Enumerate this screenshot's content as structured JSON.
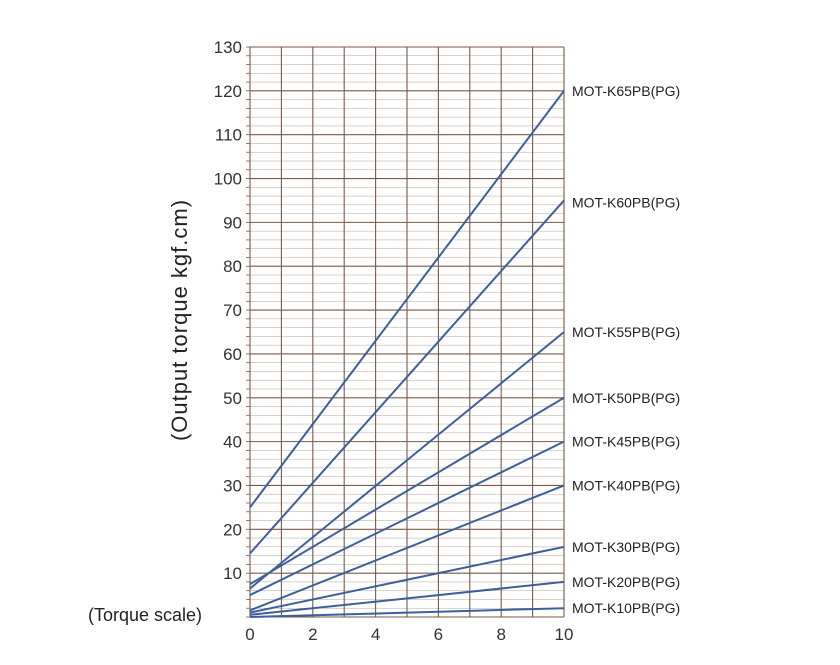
{
  "chart_data": {
    "type": "line",
    "title": "",
    "xlabel": "(Torque scale)",
    "ylabel": "(Output torque kgf.cm)",
    "xlim": [
      0,
      10
    ],
    "ylim": [
      0,
      130
    ],
    "xticks": [
      0,
      2,
      4,
      6,
      8,
      10
    ],
    "yticks": [
      10,
      20,
      30,
      40,
      50,
      60,
      70,
      80,
      90,
      100,
      110,
      120,
      130
    ],
    "grid": true,
    "legend": "none",
    "series": [
      {
        "name": "MOT-K65PB(PG)",
        "x": [
          0,
          10
        ],
        "y": [
          25,
          120
        ]
      },
      {
        "name": "MOT-K60PB(PG)",
        "x": [
          0,
          10
        ],
        "y": [
          14.5,
          95
        ]
      },
      {
        "name": "MOT-K55PB(PG)",
        "x": [
          0,
          10
        ],
        "y": [
          6.5,
          65
        ]
      },
      {
        "name": "MOT-K50PB(PG)",
        "x": [
          0,
          10
        ],
        "y": [
          7.5,
          50
        ]
      },
      {
        "name": "MOT-K45PB(PG)",
        "x": [
          0,
          10
        ],
        "y": [
          5,
          40
        ]
      },
      {
        "name": "MOT-K40PB(PG)",
        "x": [
          0,
          10
        ],
        "y": [
          1.5,
          30
        ]
      },
      {
        "name": "MOT-K30PB(PG)",
        "x": [
          0,
          10
        ],
        "y": [
          1,
          16
        ]
      },
      {
        "name": "MOT-K20PB(PG)",
        "x": [
          0,
          10
        ],
        "y": [
          0.5,
          8
        ]
      },
      {
        "name": "MOT-K10PB(PG)",
        "x": [
          0,
          10
        ],
        "y": [
          0,
          2
        ]
      }
    ],
    "colors": {
      "line": "#3d5f9a",
      "grid_major": "#7a5a4a",
      "grid_minor": "#7a5a4a"
    }
  }
}
